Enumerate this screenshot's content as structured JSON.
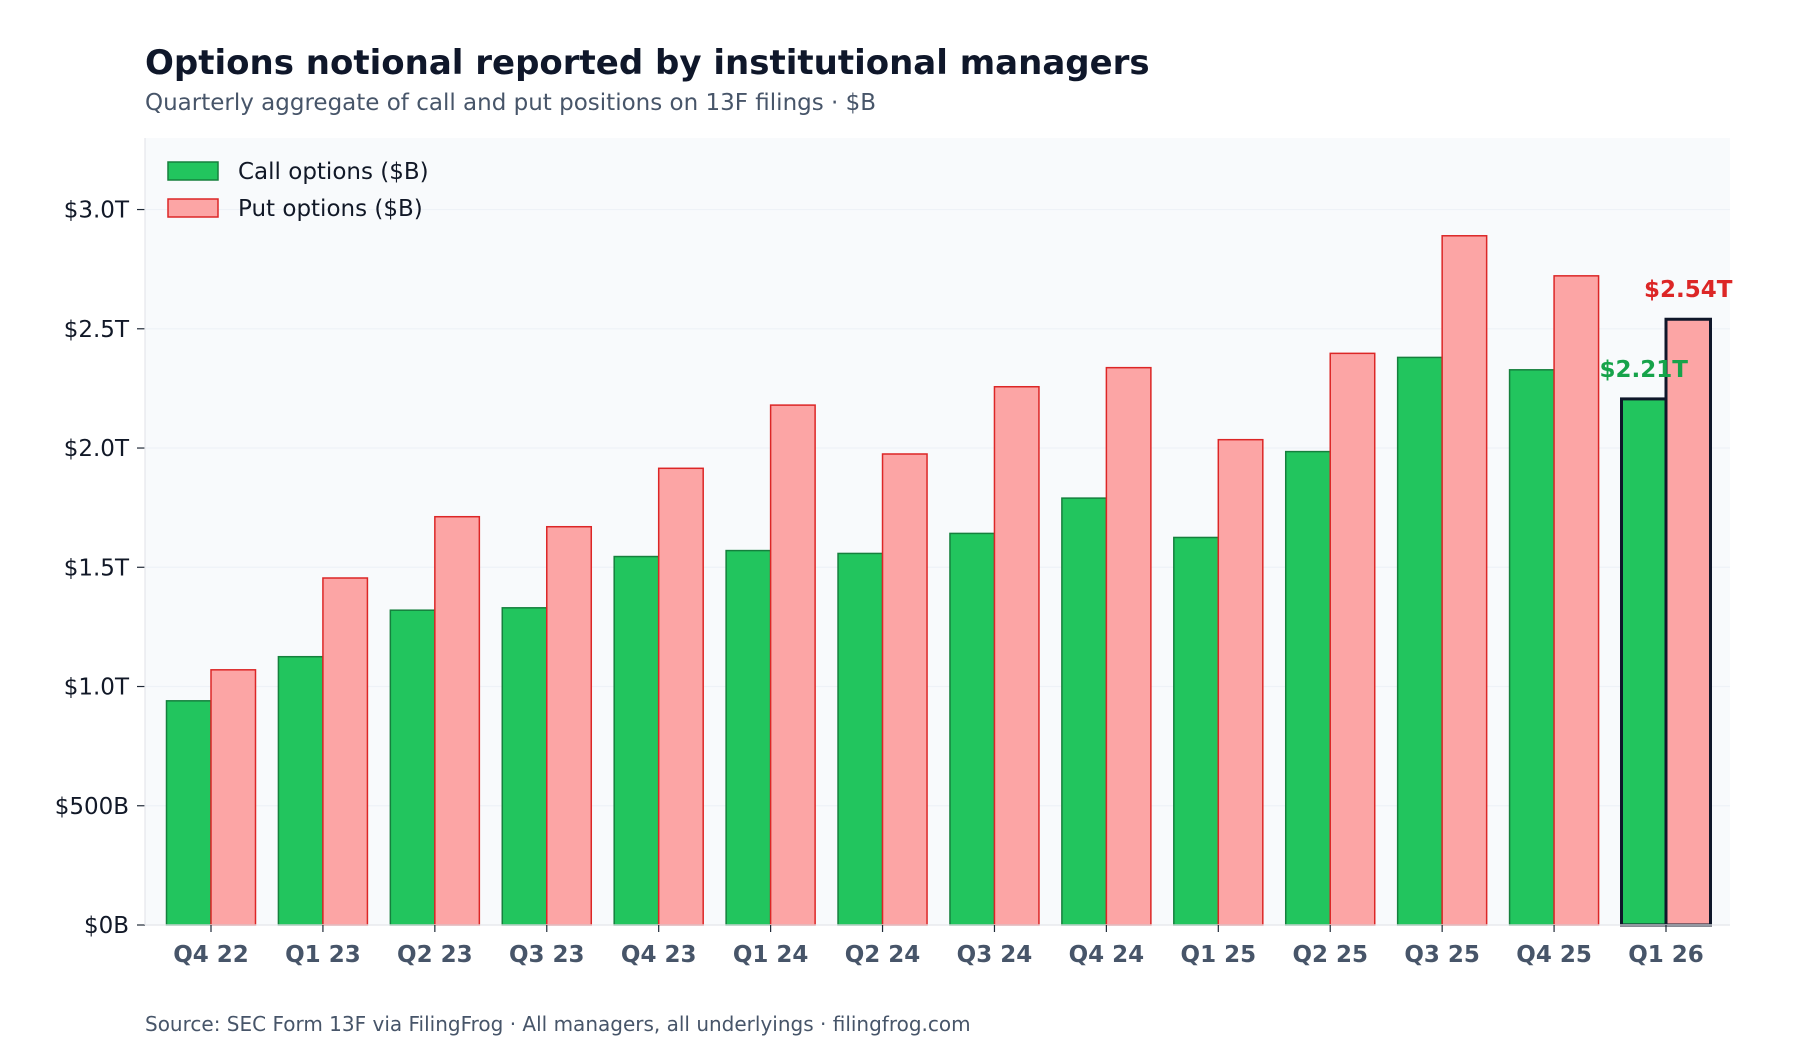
{
  "colors": {
    "call_fill": "#22C55E",
    "call_stroke": "#15803D",
    "put_fill": "#FCA5A5",
    "put_stroke": "#DC2626",
    "highlight_stroke": "#0F172A",
    "title": "#0F172A",
    "subtitle": "#475569",
    "plot_bg": "#F8FAFC",
    "grid": "#EEF2F7",
    "axis_text": "#111827",
    "xtick_text": "#475569",
    "call_label": "#16A34A",
    "put_label": "#DC2626"
  },
  "chart_data": {
    "type": "bar",
    "title": "Options notional reported by institutional managers",
    "subtitle": "Quarterly aggregate of call and put positions on 13F filings  ·  $B",
    "source": "Source: SEC Form 13F via FilingFrog  ·  All managers, all underlyings  ·  filingfrog.com",
    "xlabel": "",
    "ylabel": "",
    "categories": [
      "Q4 22",
      "Q1 23",
      "Q2 23",
      "Q3 23",
      "Q4 23",
      "Q1 24",
      "Q2 24",
      "Q3 24",
      "Q4 24",
      "Q1 25",
      "Q2 25",
      "Q3 25",
      "Q4 25",
      "Q1 26"
    ],
    "series": [
      {
        "name": "Call options ($B)",
        "values": [
          940,
          1125,
          1320,
          1330,
          1545,
          1570,
          1558,
          1642,
          1790,
          1625,
          1985,
          2380,
          2328,
          2206
        ]
      },
      {
        "name": "Put options ($B)",
        "values": [
          1070,
          1455,
          1712,
          1670,
          1915,
          2180,
          1975,
          2257,
          2337,
          2035,
          2397,
          2890,
          2722,
          2540
        ]
      }
    ],
    "ylim": [
      0,
      3300
    ],
    "yticks": [
      0,
      500,
      1000,
      1500,
      2000,
      2500,
      3000
    ],
    "ytick_labels": [
      "$0B",
      "$500B",
      "$1.0T",
      "$1.5T",
      "$2.0T",
      "$2.5T",
      "$3.0T"
    ],
    "grid": true,
    "legend_position": "top-left",
    "highlight_index": 13,
    "annotations": [
      {
        "series": 0,
        "index": 13,
        "text": "$2.21T"
      },
      {
        "series": 1,
        "index": 13,
        "text": "$2.54T"
      }
    ]
  }
}
